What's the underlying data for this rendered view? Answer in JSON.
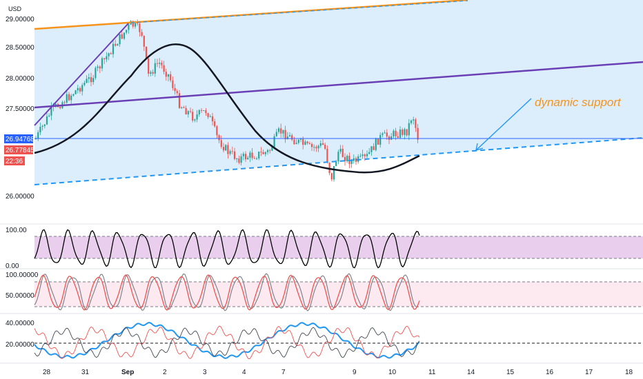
{
  "chart_data": {
    "type": "candlestick",
    "currency": "USD",
    "price_axis": {
      "ticks": [
        "29.00000",
        "28.50000",
        "28.00000",
        "27.50000",
        "26.00000"
      ],
      "badges": [
        {
          "label": "26.94768",
          "color": "#2962ff"
        },
        {
          "label": "26.77845",
          "color": "#ef5350"
        },
        {
          "label": "22:36",
          "color": "#ef5350"
        }
      ],
      "last_price": 26.94768
    },
    "x_axis": {
      "ticks": [
        "28",
        "31",
        "Sep",
        "2",
        "3",
        "4",
        "7",
        "9",
        "10",
        "11",
        "14",
        "15",
        "16",
        "17",
        "18"
      ]
    },
    "annotation": "dynamic support",
    "pane1": {
      "ticks": [
        "100.00",
        "0.00"
      ],
      "band": [
        20,
        80
      ],
      "band_color": "#e1bee7"
    },
    "pane2": {
      "ticks": [
        "100.00000",
        "50.00000"
      ],
      "band": [
        20,
        80
      ],
      "band_color": "#fce4ec"
    },
    "pane3": {
      "ticks": [
        "40.00000",
        "20.00000"
      ],
      "level": 20
    },
    "colors": {
      "up": "#26a69a",
      "down": "#ef5350",
      "channel_fill": "#d6ebfb",
      "upper_line": "#f7931a",
      "mid_line": "#6a3fb5",
      "support": "#2196f3",
      "curve": "#131722"
    }
  }
}
